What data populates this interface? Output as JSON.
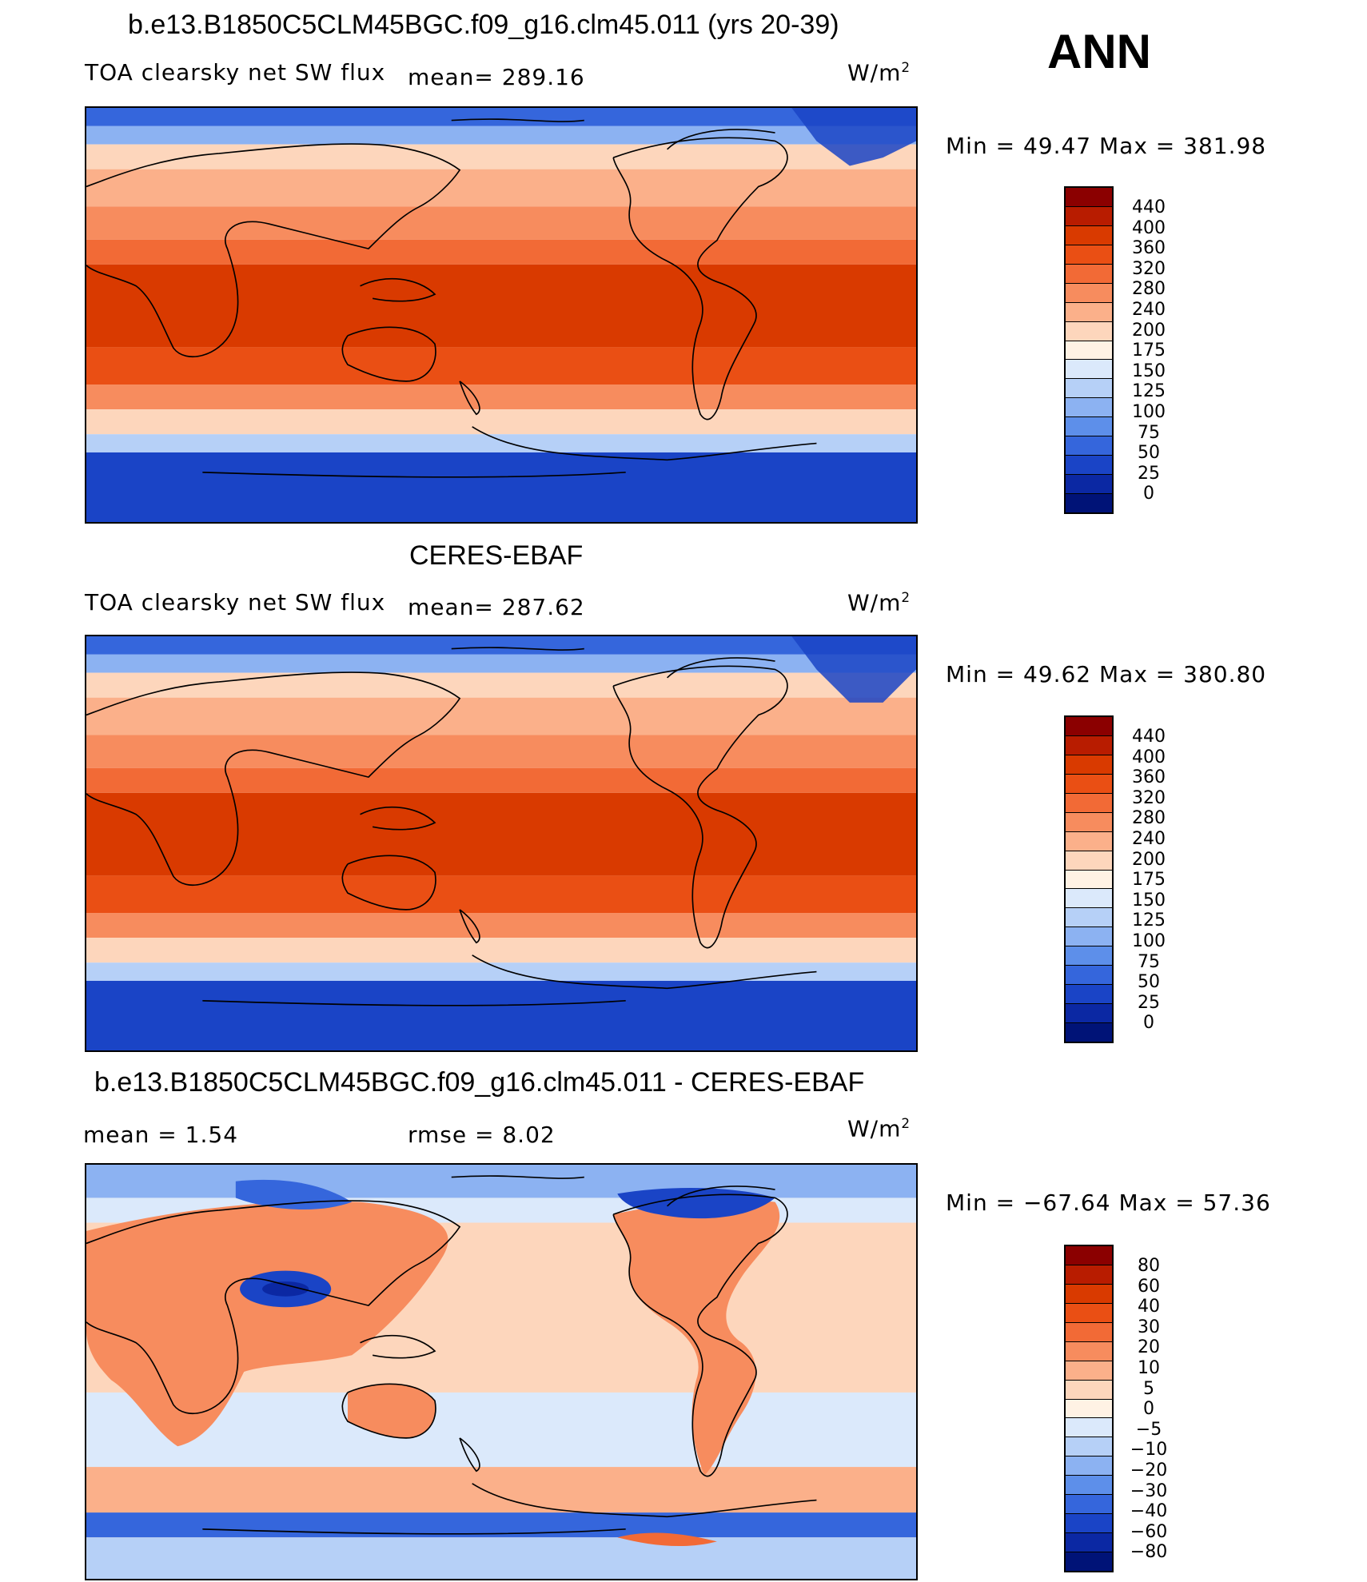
{
  "header": {
    "season": "ANN"
  },
  "panels": [
    {
      "id": "model",
      "title": "b.e13.B1850C5CLM45BGC.f09_g16.clm45.011 (yrs 20-39)",
      "variable": "TOA clearsky net SW flux",
      "stat1": "mean=  289.16",
      "units": "W/m",
      "units_sup": "2",
      "minmax": "Min =   49.47 Max = 381.98",
      "legend_labels": [
        "440",
        "400",
        "360",
        "320",
        "280",
        "240",
        "200",
        "175",
        "150",
        "125",
        "100",
        "75",
        "50",
        "25",
        "0"
      ],
      "legend_colors": [
        "#8b0000",
        "#b81c00",
        "#d93a00",
        "#ea4f14",
        "#f26a36",
        "#f78c5e",
        "#fbb08a",
        "#fdd6bc",
        "#fff2e4",
        "#dbe9fb",
        "#b6d0f7",
        "#8cb2f2",
        "#5d8fea",
        "#3566dc",
        "#1a44c6",
        "#0b28a3",
        "#001377"
      ]
    },
    {
      "id": "obs",
      "title": "CERES-EBAF",
      "variable": "TOA clearsky net SW flux",
      "stat1": "mean=  287.62",
      "units": "W/m",
      "units_sup": "2",
      "minmax": "Min =   49.62 Max = 380.80",
      "legend_labels": [
        "440",
        "400",
        "360",
        "320",
        "280",
        "240",
        "200",
        "175",
        "150",
        "125",
        "100",
        "75",
        "50",
        "25",
        "0"
      ],
      "legend_colors": [
        "#8b0000",
        "#b81c00",
        "#d93a00",
        "#ea4f14",
        "#f26a36",
        "#f78c5e",
        "#fbb08a",
        "#fdd6bc",
        "#fff2e4",
        "#dbe9fb",
        "#b6d0f7",
        "#8cb2f2",
        "#5d8fea",
        "#3566dc",
        "#1a44c6",
        "#0b28a3",
        "#001377"
      ]
    },
    {
      "id": "diff",
      "title": "b.e13.B1850C5CLM45BGC.f09_g16.clm45.011 - CERES-EBAF",
      "stat_mean": "mean =     1.54",
      "stat_rmse": "rmse =     8.02",
      "units": "W/m",
      "units_sup": "2",
      "minmax": "Min = −67.64 Max =   57.36",
      "legend_labels": [
        "80",
        "60",
        "40",
        "30",
        "20",
        "10",
        "5",
        "0",
        "−5",
        "−10",
        "−20",
        "−30",
        "−40",
        "−60",
        "−80"
      ],
      "legend_colors": [
        "#8b0000",
        "#b81c00",
        "#d93a00",
        "#ea4f14",
        "#f26a36",
        "#f78c5e",
        "#fbb08a",
        "#fdd6bc",
        "#fff2e4",
        "#dbe9fb",
        "#b6d0f7",
        "#8cb2f2",
        "#5d8fea",
        "#3566dc",
        "#1a44c6",
        "#0b28a3",
        "#001377"
      ]
    }
  ]
}
